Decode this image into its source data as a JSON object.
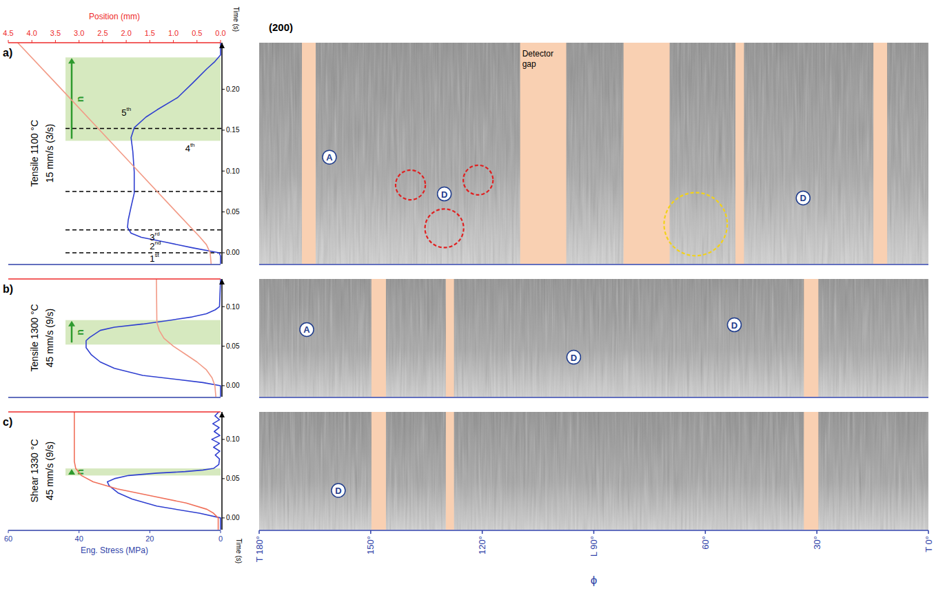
{
  "chart_data": [
    {
      "type": "line",
      "label": "a)",
      "title": "Tensile 1100 °C",
      "subtitle": "15 mm/s (3/s)",
      "image_title": "(200)",
      "ylabel": "Time (s)",
      "ylim": [
        -0.0135,
        0.257
      ],
      "yticks": [
        {
          "value": 0,
          "label": "0.00"
        },
        {
          "value": 0.05,
          "label": "0.05"
        },
        {
          "value": 0.1,
          "label": "0.10"
        },
        {
          "value": 0.15,
          "label": "0.15"
        },
        {
          "value": 0.2,
          "label": "0.20"
        }
      ],
      "xlim": [
        60,
        0
      ],
      "x2label": "Position (mm)",
      "x2lim": [
        4.5,
        0
      ],
      "x2ticks": [
        {
          "value": 4.5,
          "label": "4.5"
        },
        {
          "value": 4,
          "label": "4.0"
        },
        {
          "value": 3.5,
          "label": "3.5"
        },
        {
          "value": 3,
          "label": "3.0"
        },
        {
          "value": 2.5,
          "label": "2.5"
        },
        {
          "value": 2,
          "label": "2.0"
        },
        {
          "value": 1.5,
          "label": "1.5"
        },
        {
          "value": 1,
          "label": "1.0"
        },
        {
          "value": 0.5,
          "label": "0.5"
        },
        {
          "value": 0,
          "label": "0.0"
        }
      ],
      "band": [
        0.137,
        0.239
      ],
      "band_label": "n",
      "stage_lines": [
        0,
        0.028,
        0.075,
        0.152
      ],
      "stage_labels": [
        {
          "label": "1st",
          "t": -0.007,
          "x": 20
        },
        {
          "label": "2nd",
          "t": 0.008,
          "x": 20
        },
        {
          "label": "3rd",
          "t": 0.019,
          "x": 20
        },
        {
          "label": "4th",
          "t": 0.128,
          "x": 10
        },
        {
          "label": "5th",
          "t": 0.172,
          "x": 28
        }
      ],
      "series": [
        {
          "color": "#2f3fd0",
          "axis": "x",
          "x": [
            0,
            0,
            0.4,
            7.8,
            15.6,
            22.4,
            25.3,
            26.3,
            26.1,
            25.3,
            24.4,
            24.4,
            24.8,
            25.3,
            24.4,
            21.1,
            17.9,
            12.1,
            7.8,
            3.9,
            1.6,
            0,
            0
          ],
          "y": [
            -0.0135,
            -0.004,
            0,
            0.006,
            0.013,
            0.019,
            0.024,
            0.031,
            0.04,
            0.056,
            0.073,
            0.099,
            0.124,
            0.141,
            0.153,
            0.166,
            0.175,
            0.19,
            0.208,
            0.225,
            0.234,
            0.242,
            0.257
          ]
        },
        {
          "color": "#f29a86",
          "axis": "x2",
          "x": [
            0.2,
            0.22,
            0.3,
            0.45,
            0.94,
            1.75,
            2.56,
            3.37,
            4.3
          ],
          "y": [
            -0.0135,
            0,
            0.01,
            0.02,
            0.05,
            0.1,
            0.15,
            0.2,
            0.257
          ]
        }
      ],
      "phi_lim": [
        180,
        0
      ],
      "detector_gaps": [
        {
          "from": 168.5,
          "to": 164.8
        },
        {
          "from": 109.8,
          "to": 97.4,
          "label": "Detector gap"
        },
        {
          "from": 82,
          "to": 69.6
        },
        {
          "from": 51.9,
          "to": 49.6
        },
        {
          "from": 14.8,
          "to": 11.1
        }
      ],
      "annotations": [
        {
          "label": "A",
          "phi": 161.1,
          "t": 0.117
        },
        {
          "label": "D",
          "phi": 130.2,
          "t": 0.072
        },
        {
          "label": "D",
          "phi": 33.7,
          "t": 0.067
        }
      ],
      "circles": [
        {
          "phi": 139.3,
          "t": 0.083,
          "radius": 4,
          "color": "#e02020"
        },
        {
          "phi": 121.1,
          "t": 0.089,
          "radius": 4,
          "color": "#e02020"
        },
        {
          "phi": 130.2,
          "t": 0.03,
          "radius": 5.2,
          "color": "#e02020"
        },
        {
          "phi": 62.6,
          "t": 0.035,
          "radius": 8.5,
          "color": "#f2d21a"
        }
      ]
    },
    {
      "type": "line",
      "label": "b)",
      "title": "Tensile 1300 °C",
      "subtitle": "45 mm/s (9/s)",
      "ylim": [
        -0.014,
        0.135
      ],
      "yticks": [
        {
          "value": 0,
          "label": "0.00"
        },
        {
          "value": 0.05,
          "label": "0.05"
        },
        {
          "value": 0.1,
          "label": "0.10"
        }
      ],
      "xlim": [
        60,
        0
      ],
      "x2lim": [
        4.5,
        0
      ],
      "band": [
        0.052,
        0.083
      ],
      "band_label": "n",
      "series": [
        {
          "color": "#2f3fd0",
          "axis": "x",
          "x": [
            0,
            0,
            5,
            22,
            30,
            34,
            36.5,
            38,
            38,
            37,
            34,
            30,
            22,
            14,
            8,
            4,
            1.5,
            0.3,
            0
          ],
          "y": [
            -0.014,
            0,
            0.004,
            0.013,
            0.022,
            0.03,
            0.039,
            0.048,
            0.057,
            0.061,
            0.07,
            0.074,
            0.078,
            0.083,
            0.087,
            0.091,
            0.096,
            0.1,
            0.135
          ]
        },
        {
          "color": "#f29a86",
          "axis": "x2",
          "x": [
            0.1,
            0.12,
            0.18,
            0.3,
            0.5,
            0.75,
            1.0,
            1.2,
            1.3,
            1.35,
            1.36
          ],
          "y": [
            -0.014,
            0,
            0.01,
            0.02,
            0.03,
            0.04,
            0.05,
            0.06,
            0.07,
            0.08,
            0.135
          ]
        }
      ],
      "phi_lim": [
        180,
        0
      ],
      "detector_gaps": [
        {
          "from": 149.8,
          "to": 145.9
        },
        {
          "from": 129.8,
          "to": 127.6
        },
        {
          "from": 33.5,
          "to": 29.6
        }
      ],
      "annotations": [
        {
          "label": "A",
          "phi": 167.2,
          "t": 0.071
        },
        {
          "label": "D",
          "phi": 95.4,
          "t": 0.036
        },
        {
          "label": "D",
          "phi": 52.2,
          "t": 0.077
        }
      ]
    },
    {
      "type": "line",
      "label": "c)",
      "title": "Shear 1330 °C",
      "subtitle": "45 mm/s (9/s)",
      "ylabel": "Time (s)",
      "ylim": [
        -0.015,
        0.135
      ],
      "yticks": [
        {
          "value": 0,
          "label": "0.00"
        },
        {
          "value": 0.05,
          "label": "0.05"
        },
        {
          "value": 0.1,
          "label": "0.10"
        }
      ],
      "xlabel": "Eng. Stress (MPa)",
      "xlim": [
        60,
        0
      ],
      "xticks": [
        60,
        40,
        20,
        0
      ],
      "x2lim": [
        4.5,
        0
      ],
      "band": [
        0.054,
        0.063
      ],
      "band_label": "n",
      "series": [
        {
          "color": "#2f3fd0",
          "axis": "x",
          "x": [
            0,
            0,
            6,
            18,
            25,
            29,
            31.5,
            32,
            30,
            26,
            18,
            10,
            5,
            2,
            0.5,
            0.3,
            1.5,
            0.2,
            2,
            0.3,
            2.5,
            0.2,
            1.8,
            0.4,
            2.2,
            0.3,
            1.6,
            0.5
          ],
          "y": [
            -0.015,
            0,
            0.006,
            0.015,
            0.024,
            0.032,
            0.041,
            0.046,
            0.05,
            0.054,
            0.057,
            0.059,
            0.061,
            0.063,
            0.068,
            0.075,
            0.08,
            0.085,
            0.09,
            0.095,
            0.1,
            0.105,
            0.11,
            0.115,
            0.12,
            0.125,
            0.13,
            0.135
          ]
        },
        {
          "color": "#f0705a",
          "axis": "x2",
          "x": [
            0.05,
            0.05,
            0.15,
            0.29,
            0.73,
            1.46,
            2.19,
            2.7,
            2.95,
            3.07,
            3.1,
            3.1
          ],
          "y": [
            -0.015,
            0,
            0.006,
            0.011,
            0.019,
            0.028,
            0.037,
            0.046,
            0.054,
            0.063,
            0.072,
            0.135
          ]
        }
      ],
      "phi_lim": [
        180,
        0
      ],
      "phi_label": "ϕ",
      "phi_ticks": [
        {
          "value": 180,
          "label": "T 180°"
        },
        {
          "value": 150,
          "label": "150°"
        },
        {
          "value": 120,
          "label": "120°"
        },
        {
          "value": 90,
          "label": "L 90°"
        },
        {
          "value": 60,
          "label": "60°"
        },
        {
          "value": 30,
          "label": "30°"
        },
        {
          "value": 0,
          "label": "T 0°"
        }
      ],
      "detector_gaps": [
        {
          "from": 149.8,
          "to": 145.9
        },
        {
          "from": 129.8,
          "to": 127.6
        },
        {
          "from": 33.5,
          "to": 29.6
        }
      ],
      "annotations": [
        {
          "label": "D",
          "phi": 158.7,
          "t": 0.035
        }
      ]
    }
  ]
}
